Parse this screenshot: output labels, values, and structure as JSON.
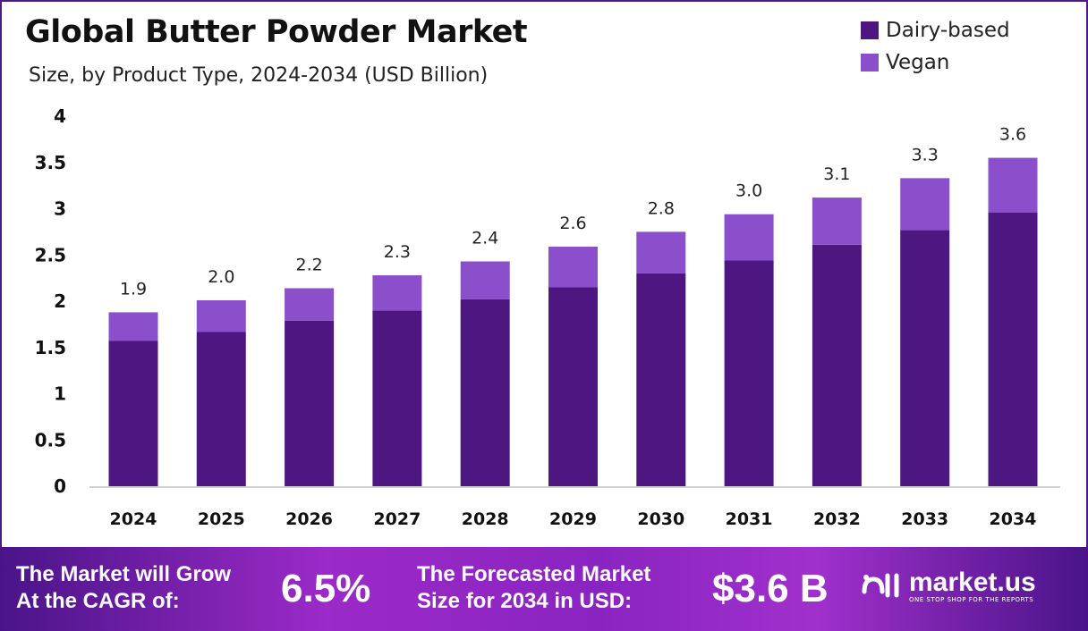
{
  "header": {
    "title": "Global Butter Powder Market",
    "subtitle": "Size, by Product Type, 2024-2034 (USD Billion)"
  },
  "legend": [
    {
      "label": "Dairy-based",
      "color": "#4e1680"
    },
    {
      "label": "Vegan",
      "color": "#8b4fcb"
    }
  ],
  "chart_data": {
    "type": "bar",
    "stacked": true,
    "categories": [
      "2024",
      "2025",
      "2026",
      "2027",
      "2028",
      "2029",
      "2030",
      "2031",
      "2032",
      "2033",
      "2034"
    ],
    "series": [
      {
        "name": "Dairy-based",
        "color": "#4e1680",
        "values": [
          1.57,
          1.67,
          1.79,
          1.9,
          2.02,
          2.15,
          2.3,
          2.44,
          2.61,
          2.77,
          2.96
        ]
      },
      {
        "name": "Vegan",
        "color": "#8b4fcb",
        "values": [
          0.31,
          0.34,
          0.35,
          0.38,
          0.41,
          0.44,
          0.45,
          0.5,
          0.51,
          0.56,
          0.59
        ]
      }
    ],
    "totals_labels": [
      "1.9",
      "2.0",
      "2.2",
      "2.3",
      "2.4",
      "2.6",
      "2.8",
      "3.0",
      "3.1",
      "3.3",
      "3.6"
    ],
    "yticks": [
      "0",
      "0.5",
      "1",
      "1.5",
      "2",
      "2.5",
      "3",
      "3.5",
      "4"
    ],
    "ylim": [
      0,
      4
    ],
    "grid": false,
    "legend_position": "top-right"
  },
  "footer": {
    "cagr_text_1": "The Market will Grow",
    "cagr_text_2": "At the CAGR of:",
    "cagr_value": "6.5%",
    "forecast_text_1": "The Forecasted Market",
    "forecast_text_2": "Size for 2034 in USD:",
    "forecast_value": "$3.6 B",
    "logo_name": "market.us",
    "logo_tagline": "ONE STOP SHOP FOR THE REPORTS"
  }
}
